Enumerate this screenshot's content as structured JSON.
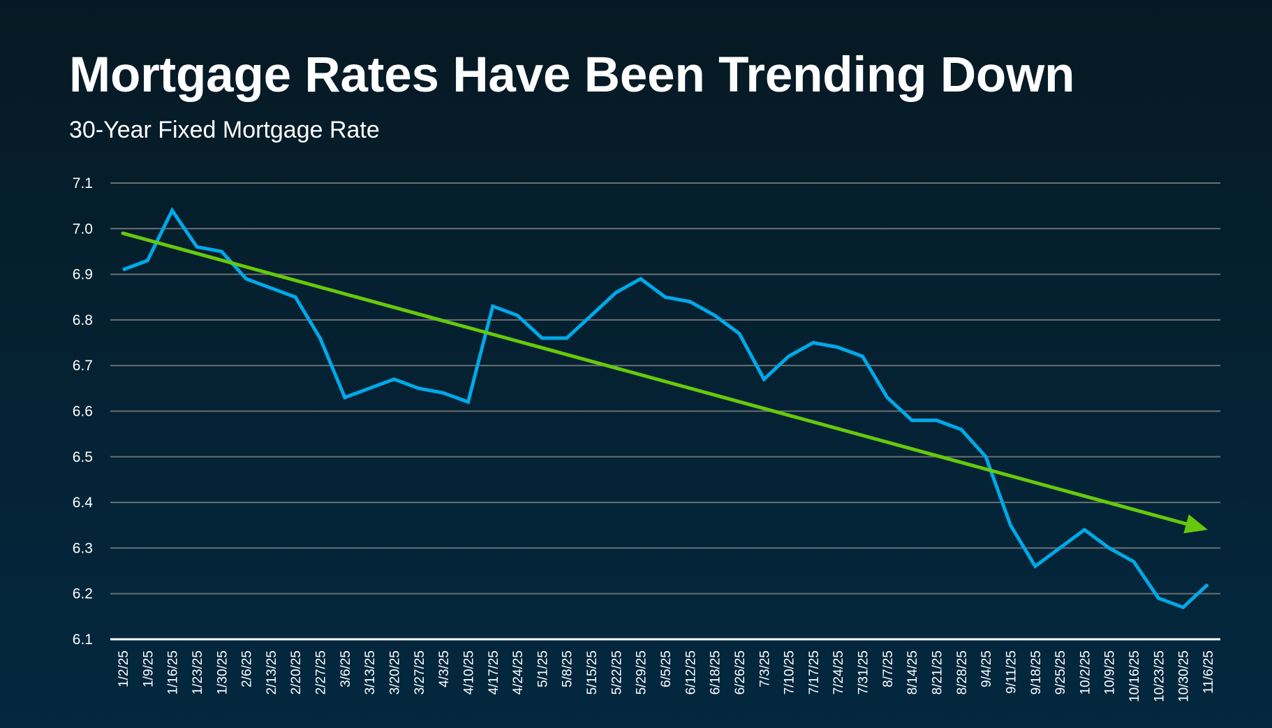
{
  "header": {
    "title": "Mortgage Rates Have Been Trending Down",
    "subtitle": "30-Year Fixed Mortgage Rate"
  },
  "colors": {
    "background_top": "#061923",
    "background_bottom": "#03283f",
    "rate_line": "#00a9e8",
    "trend_arrow": "#66c90e",
    "gridline": "#6b6f72",
    "axis_line": "#ffffff",
    "text": "#ffffff"
  },
  "chart_data": {
    "type": "line",
    "title": "Mortgage Rates Have Been Trending Down",
    "subtitle": "30-Year Fixed Mortgage Rate",
    "xlabel": "",
    "ylabel": "",
    "ylim": [
      6.1,
      7.1
    ],
    "yticks": [
      "7.1",
      "7.0",
      "6.9",
      "6.8",
      "6.7",
      "6.6",
      "6.5",
      "6.4",
      "6.3",
      "6.2",
      "6.1"
    ],
    "grid": true,
    "legend": "none",
    "categories": [
      "1/2/25",
      "1/9/25",
      "1/16/25",
      "1/23/25",
      "1/30/25",
      "2/6/25",
      "2/13/25",
      "2/20/25",
      "2/27/25",
      "3/6/25",
      "3/13/25",
      "3/20/25",
      "3/27/25",
      "4/3/25",
      "4/10/25",
      "4/17/25",
      "4/24/25",
      "5/1/25",
      "5/8/25",
      "5/15/25",
      "5/22/25",
      "5/29/25",
      "6/5/25",
      "6/12/25",
      "6/18/25",
      "6/26/25",
      "7/3/25",
      "7/10/25",
      "7/17/25",
      "7/24/25",
      "7/31/25",
      "8/7/25",
      "8/14/25",
      "8/21/25",
      "8/28/25",
      "9/4/25",
      "9/11/25",
      "9/18/25",
      "9/25/25",
      "10/2/25",
      "10/9/25",
      "10/16/25",
      "10/23/25",
      "10/30/25",
      "11/6/25"
    ],
    "series": [
      {
        "name": "30-Year Fixed Mortgage Rate",
        "values": [
          6.91,
          6.93,
          7.04,
          6.96,
          6.95,
          6.89,
          6.87,
          6.85,
          6.76,
          6.63,
          6.65,
          6.67,
          6.65,
          6.64,
          6.62,
          6.83,
          6.81,
          6.76,
          6.76,
          6.81,
          6.86,
          6.89,
          6.85,
          6.84,
          6.81,
          6.77,
          6.67,
          6.72,
          6.75,
          6.74,
          6.72,
          6.63,
          6.58,
          6.58,
          6.56,
          6.5,
          6.35,
          6.26,
          6.3,
          6.34,
          6.3,
          6.27,
          6.19,
          6.17,
          6.22
        ]
      }
    ],
    "annotations": [
      {
        "type": "trend-arrow",
        "description": "Downward trend arrow",
        "start": {
          "category": "1/2/25",
          "value": 6.99
        },
        "end": {
          "category": "11/6/25",
          "value": 6.34
        }
      }
    ]
  }
}
